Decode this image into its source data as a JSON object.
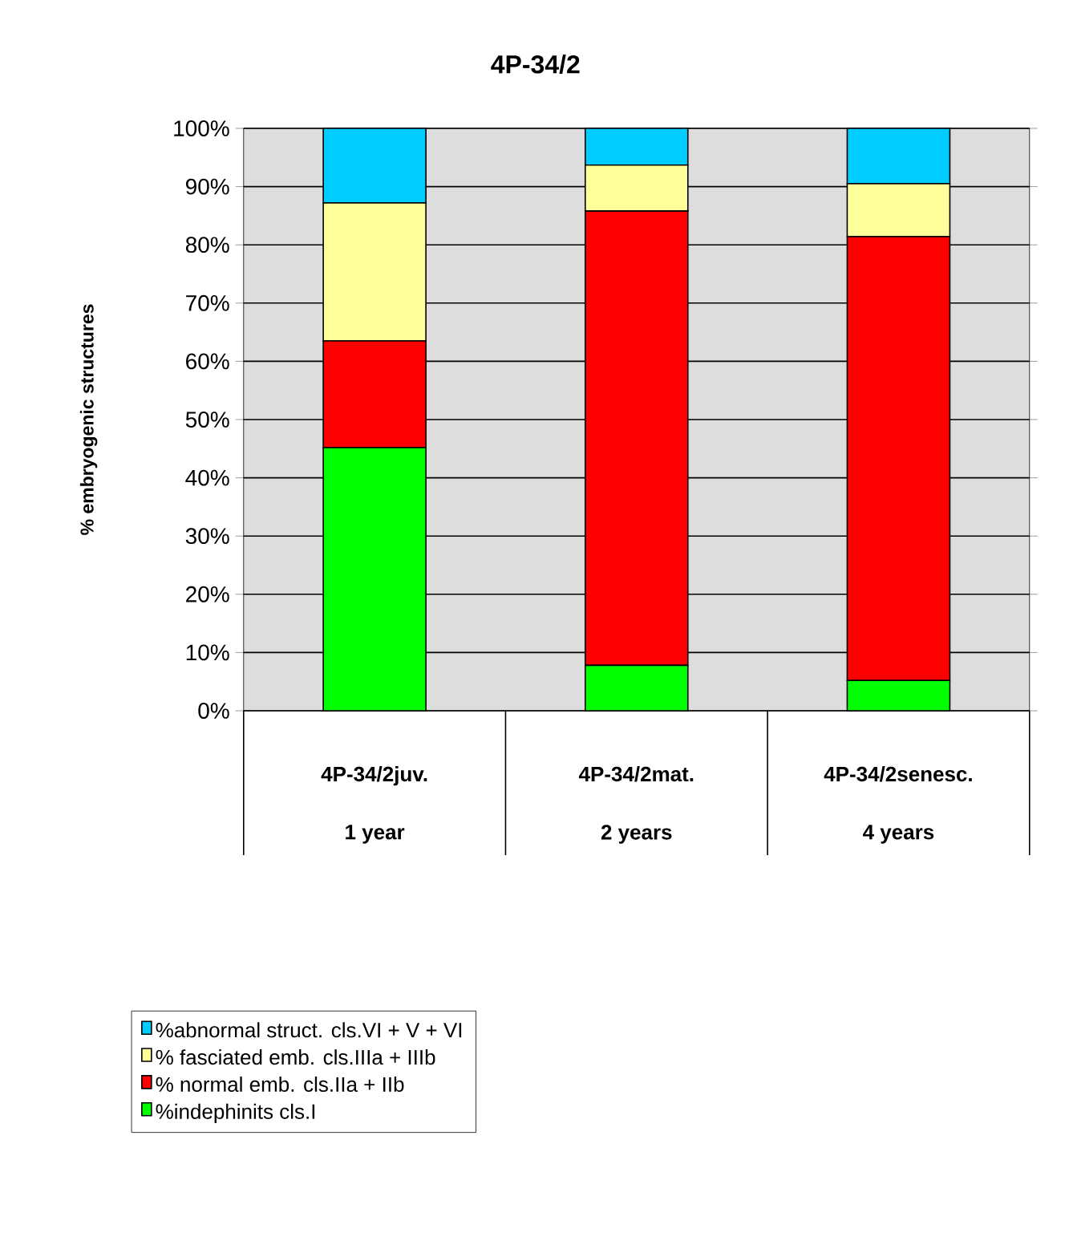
{
  "chart_data": {
    "type": "bar",
    "title": "4P-34/2",
    "ylabel": "% embryogenic structures",
    "categories": [
      "4P-34/2juv.",
      "4P-34/2mat.",
      "4P-34/2senesc."
    ],
    "annotations": [
      "1 year",
      "2 years",
      "4 years"
    ],
    "stacked": true,
    "series": [
      {
        "name": "%indephinits cls.I",
        "color": "#00ff00",
        "values": [
          45.2,
          7.8,
          5.2
        ]
      },
      {
        "name": "% normal emb. cls.IIa + IIb",
        "color": "#ff0000",
        "values": [
          18.3,
          78.0,
          76.2
        ]
      },
      {
        "name": "% fasciated emb. cls.IIIa + IIIb",
        "color": "#ffff99",
        "values": [
          23.7,
          7.9,
          9.1
        ]
      },
      {
        "name": "%abnormal struct.  cls.VI + V + VI",
        "color": "#00ccff",
        "values": [
          12.8,
          6.3,
          9.5
        ]
      }
    ],
    "ylim": [
      0,
      100
    ],
    "yticks": [
      {
        "value": 0,
        "label": "0%"
      },
      {
        "value": 10,
        "label": "10%"
      },
      {
        "value": 20,
        "label": "20%"
      },
      {
        "value": 30,
        "label": "30%"
      },
      {
        "value": 40,
        "label": "40%"
      },
      {
        "value": 50,
        "label": "50%"
      },
      {
        "value": 60,
        "label": "60%"
      },
      {
        "value": 70,
        "label": "70%"
      },
      {
        "value": 80,
        "label": "80%"
      },
      {
        "value": 90,
        "label": "90%"
      },
      {
        "value": 100,
        "label": "100%"
      }
    ],
    "grid": true,
    "legend": "bottom"
  }
}
